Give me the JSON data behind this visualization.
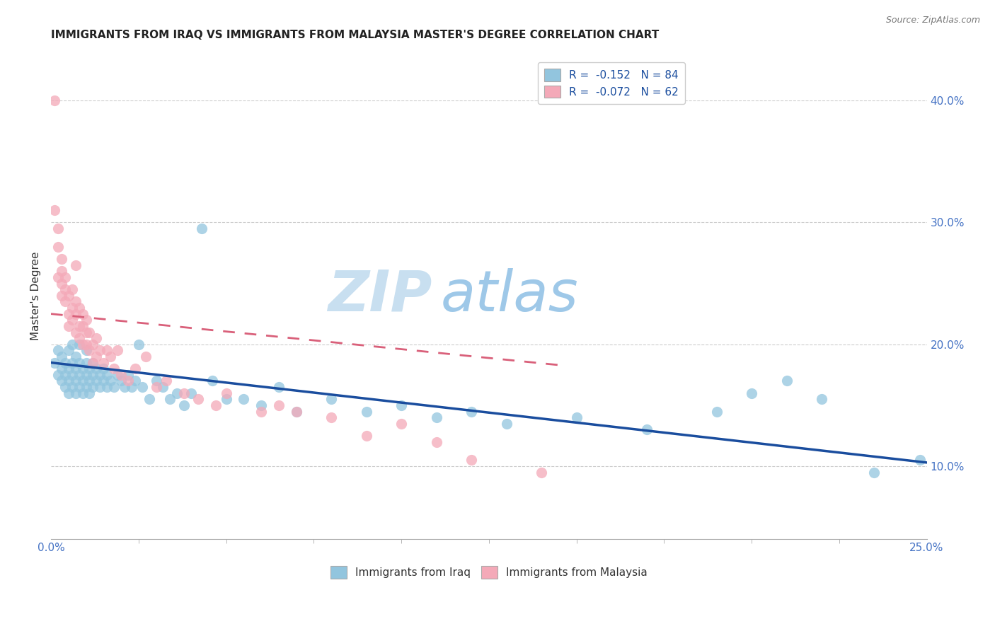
{
  "title": "IMMIGRANTS FROM IRAQ VS IMMIGRANTS FROM MALAYSIA MASTER'S DEGREE CORRELATION CHART",
  "source": "Source: ZipAtlas.com",
  "ylabel": "Master's Degree",
  "ylabel_right_ticks": [
    "10.0%",
    "20.0%",
    "30.0%",
    "40.0%"
  ],
  "ylabel_right_vals": [
    0.1,
    0.2,
    0.3,
    0.4
  ],
  "x_min": 0.0,
  "x_max": 0.25,
  "y_min": 0.04,
  "y_max": 0.44,
  "legend_iraq_r": "-0.152",
  "legend_iraq_n": "84",
  "legend_malaysia_r": "-0.072",
  "legend_malaysia_n": "62",
  "legend_label_iraq": "Immigrants from Iraq",
  "legend_label_malaysia": "Immigrants from Malaysia",
  "color_iraq": "#92c5de",
  "color_malaysia": "#f4a9b8",
  "color_iraq_line": "#1a4d9e",
  "color_malaysia_line": "#d9607a",
  "watermark_zip": "ZIP",
  "watermark_atlas": "atlas",
  "watermark_color_zip": "#c8dff0",
  "watermark_color_atlas": "#9ec8e8",
  "iraq_scatter_x": [
    0.001,
    0.002,
    0.002,
    0.003,
    0.003,
    0.003,
    0.004,
    0.004,
    0.004,
    0.005,
    0.005,
    0.005,
    0.005,
    0.006,
    0.006,
    0.006,
    0.006,
    0.007,
    0.007,
    0.007,
    0.007,
    0.008,
    0.008,
    0.008,
    0.008,
    0.009,
    0.009,
    0.009,
    0.01,
    0.01,
    0.01,
    0.01,
    0.011,
    0.011,
    0.011,
    0.012,
    0.012,
    0.012,
    0.013,
    0.013,
    0.014,
    0.014,
    0.015,
    0.015,
    0.016,
    0.016,
    0.017,
    0.018,
    0.019,
    0.02,
    0.021,
    0.022,
    0.023,
    0.024,
    0.025,
    0.026,
    0.028,
    0.03,
    0.032,
    0.034,
    0.036,
    0.038,
    0.04,
    0.043,
    0.046,
    0.05,
    0.055,
    0.06,
    0.065,
    0.07,
    0.08,
    0.09,
    0.1,
    0.11,
    0.12,
    0.13,
    0.15,
    0.17,
    0.19,
    0.2,
    0.21,
    0.22,
    0.235,
    0.248
  ],
  "iraq_scatter_y": [
    0.185,
    0.175,
    0.195,
    0.17,
    0.18,
    0.19,
    0.165,
    0.175,
    0.185,
    0.16,
    0.17,
    0.18,
    0.195,
    0.165,
    0.175,
    0.185,
    0.2,
    0.16,
    0.17,
    0.18,
    0.19,
    0.165,
    0.175,
    0.185,
    0.2,
    0.16,
    0.17,
    0.18,
    0.165,
    0.175,
    0.185,
    0.195,
    0.16,
    0.17,
    0.18,
    0.165,
    0.175,
    0.185,
    0.17,
    0.18,
    0.165,
    0.175,
    0.17,
    0.18,
    0.165,
    0.175,
    0.17,
    0.165,
    0.175,
    0.17,
    0.165,
    0.175,
    0.165,
    0.17,
    0.2,
    0.165,
    0.155,
    0.17,
    0.165,
    0.155,
    0.16,
    0.15,
    0.16,
    0.295,
    0.17,
    0.155,
    0.155,
    0.15,
    0.165,
    0.145,
    0.155,
    0.145,
    0.15,
    0.14,
    0.145,
    0.135,
    0.14,
    0.13,
    0.145,
    0.16,
    0.17,
    0.155,
    0.095,
    0.105
  ],
  "malaysia_scatter_x": [
    0.001,
    0.001,
    0.002,
    0.002,
    0.002,
    0.003,
    0.003,
    0.003,
    0.003,
    0.004,
    0.004,
    0.004,
    0.005,
    0.005,
    0.005,
    0.006,
    0.006,
    0.006,
    0.007,
    0.007,
    0.007,
    0.007,
    0.008,
    0.008,
    0.008,
    0.009,
    0.009,
    0.009,
    0.01,
    0.01,
    0.01,
    0.011,
    0.011,
    0.012,
    0.012,
    0.013,
    0.013,
    0.014,
    0.015,
    0.016,
    0.017,
    0.018,
    0.019,
    0.02,
    0.022,
    0.024,
    0.027,
    0.03,
    0.033,
    0.038,
    0.042,
    0.047,
    0.05,
    0.06,
    0.065,
    0.07,
    0.08,
    0.09,
    0.1,
    0.11,
    0.12,
    0.14
  ],
  "malaysia_scatter_y": [
    0.4,
    0.31,
    0.295,
    0.28,
    0.255,
    0.26,
    0.24,
    0.25,
    0.27,
    0.235,
    0.245,
    0.255,
    0.225,
    0.24,
    0.215,
    0.23,
    0.245,
    0.22,
    0.21,
    0.225,
    0.235,
    0.265,
    0.205,
    0.215,
    0.23,
    0.2,
    0.215,
    0.225,
    0.2,
    0.21,
    0.22,
    0.195,
    0.21,
    0.185,
    0.2,
    0.19,
    0.205,
    0.195,
    0.185,
    0.195,
    0.19,
    0.18,
    0.195,
    0.175,
    0.17,
    0.18,
    0.19,
    0.165,
    0.17,
    0.16,
    0.155,
    0.15,
    0.16,
    0.145,
    0.15,
    0.145,
    0.14,
    0.125,
    0.135,
    0.12,
    0.105,
    0.095
  ]
}
